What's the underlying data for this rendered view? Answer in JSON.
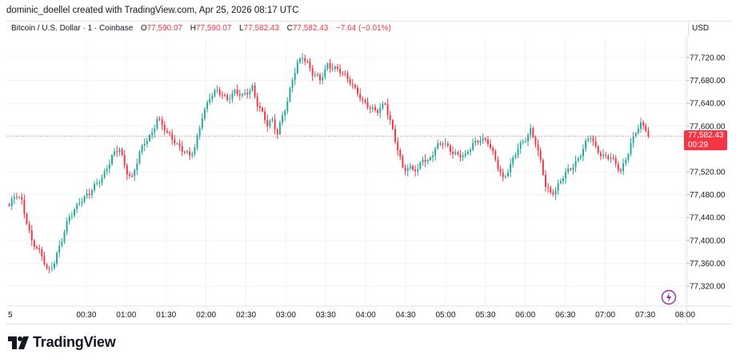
{
  "header": {
    "attribution": "dominic_doellel created with TradingView.com, Apr 25, 2026 08:17 UTC"
  },
  "legend": {
    "symbol": "Bitcoin / U.S. Dollar · 1 · Coinbase",
    "o_label": "O",
    "o_value": "77,590.07",
    "h_label": "H",
    "h_value": "77,590.07",
    "l_label": "L",
    "l_value": "77,582.43",
    "c_label": "C",
    "c_value": "77,582.43",
    "change": "−7.64 (−0.01%)"
  },
  "currency": "USD",
  "last_price": {
    "value": "77,582.43",
    "countdown": "00:29"
  },
  "brand": "TradingView",
  "colors": {
    "up": "#26a69a",
    "down": "#f23645",
    "grid": "#f0f3fa",
    "axis_text": "#131722"
  },
  "icons": [
    "tradingview-logo-icon",
    "ai-assistant-icon"
  ],
  "chart_data": {
    "type": "candlestick",
    "y_ticks": [
      "77,720.00",
      "77,680.00",
      "77,640.00",
      "77,600.00",
      "77,520.00",
      "77,480.00",
      "77,440.00",
      "77,400.00",
      "77,360.00",
      "77,320.00"
    ],
    "ylim": [
      77300,
      77760
    ],
    "x_ticks": [
      "5",
      "00:30",
      "01:00",
      "01:30",
      "02:00",
      "02:30",
      "03:00",
      "03:30",
      "04:00",
      "04:30",
      "05:00",
      "05:30",
      "06:00",
      "06:30",
      "07:00",
      "07:30",
      "08:00"
    ],
    "close_path": [
      [
        0.0,
        77460
      ],
      [
        2.5,
        77478
      ],
      [
        5.0,
        77468
      ],
      [
        9.0,
        77400
      ],
      [
        13.0,
        77370
      ],
      [
        15.5,
        77345
      ],
      [
        18.0,
        77365
      ],
      [
        21.0,
        77400
      ],
      [
        24.0,
        77440
      ],
      [
        28.0,
        77470
      ],
      [
        32.0,
        77480
      ],
      [
        35.0,
        77500
      ],
      [
        38.0,
        77520
      ],
      [
        41.0,
        77545
      ],
      [
        44.0,
        77560
      ],
      [
        46.5,
        77525
      ],
      [
        49.0,
        77510
      ],
      [
        52.0,
        77550
      ],
      [
        54.0,
        77570
      ],
      [
        57.0,
        77590
      ],
      [
        59.0,
        77615
      ],
      [
        61.0,
        77600
      ],
      [
        63.0,
        77585
      ],
      [
        66.0,
        77575
      ],
      [
        69.0,
        77560
      ],
      [
        72.0,
        77545
      ],
      [
        74.0,
        77560
      ],
      [
        77.0,
        77620
      ],
      [
        80.0,
        77650
      ],
      [
        83.0,
        77660
      ],
      [
        87.0,
        77650
      ],
      [
        90.0,
        77660
      ],
      [
        93.0,
        77650
      ],
      [
        95.0,
        77660
      ],
      [
        97.0,
        77670
      ],
      [
        99.0,
        77640
      ],
      [
        101.0,
        77620
      ],
      [
        103.0,
        77600
      ],
      [
        105.0,
        77610
      ],
      [
        107.0,
        77590
      ],
      [
        109.0,
        77620
      ],
      [
        111.0,
        77640
      ],
      [
        113.0,
        77680
      ],
      [
        115.0,
        77710
      ],
      [
        117.0,
        77725
      ],
      [
        119.0,
        77710
      ],
      [
        121.0,
        77690
      ],
      [
        124.0,
        77680
      ],
      [
        127.0,
        77710
      ],
      [
        130.0,
        77700
      ],
      [
        133.0,
        77690
      ],
      [
        136.0,
        77680
      ],
      [
        139.0,
        77660
      ],
      [
        141.0,
        77640
      ],
      [
        144.0,
        77630
      ],
      [
        147.0,
        77630
      ],
      [
        150.0,
        77640
      ],
      [
        151.0,
        77620
      ],
      [
        153.0,
        77590
      ],
      [
        155.0,
        77560
      ],
      [
        157.0,
        77530
      ],
      [
        160.0,
        77525
      ],
      [
        163.0,
        77520
      ],
      [
        165.0,
        77545
      ],
      [
        167.0,
        77540
      ],
      [
        170.0,
        77560
      ],
      [
        173.0,
        77570
      ],
      [
        176.0,
        77560
      ],
      [
        179.0,
        77550
      ],
      [
        182.0,
        77545
      ],
      [
        185.0,
        77570
      ],
      [
        188.0,
        77580
      ],
      [
        191.0,
        77570
      ],
      [
        194.0,
        77540
      ],
      [
        197.0,
        77510
      ],
      [
        200.0,
        77530
      ],
      [
        203.0,
        77560
      ],
      [
        206.0,
        77580
      ],
      [
        208.0,
        77595
      ],
      [
        210.0,
        77570
      ],
      [
        212.0,
        77535
      ],
      [
        214.0,
        77495
      ],
      [
        216.0,
        77485
      ],
      [
        218.0,
        77490
      ],
      [
        221.0,
        77510
      ],
      [
        224.0,
        77525
      ],
      [
        227.0,
        77545
      ],
      [
        230.0,
        77570
      ],
      [
        232.0,
        77580
      ],
      [
        234.0,
        77560
      ],
      [
        237.0,
        77550
      ],
      [
        240.0,
        77545
      ],
      [
        242.0,
        77530
      ],
      [
        244.0,
        77520
      ],
      [
        246.0,
        77545
      ],
      [
        248.0,
        77570
      ],
      [
        250.0,
        77590
      ],
      [
        252.0,
        77600
      ],
      [
        254.0,
        77595
      ],
      [
        255.0,
        77582.43
      ]
    ]
  }
}
